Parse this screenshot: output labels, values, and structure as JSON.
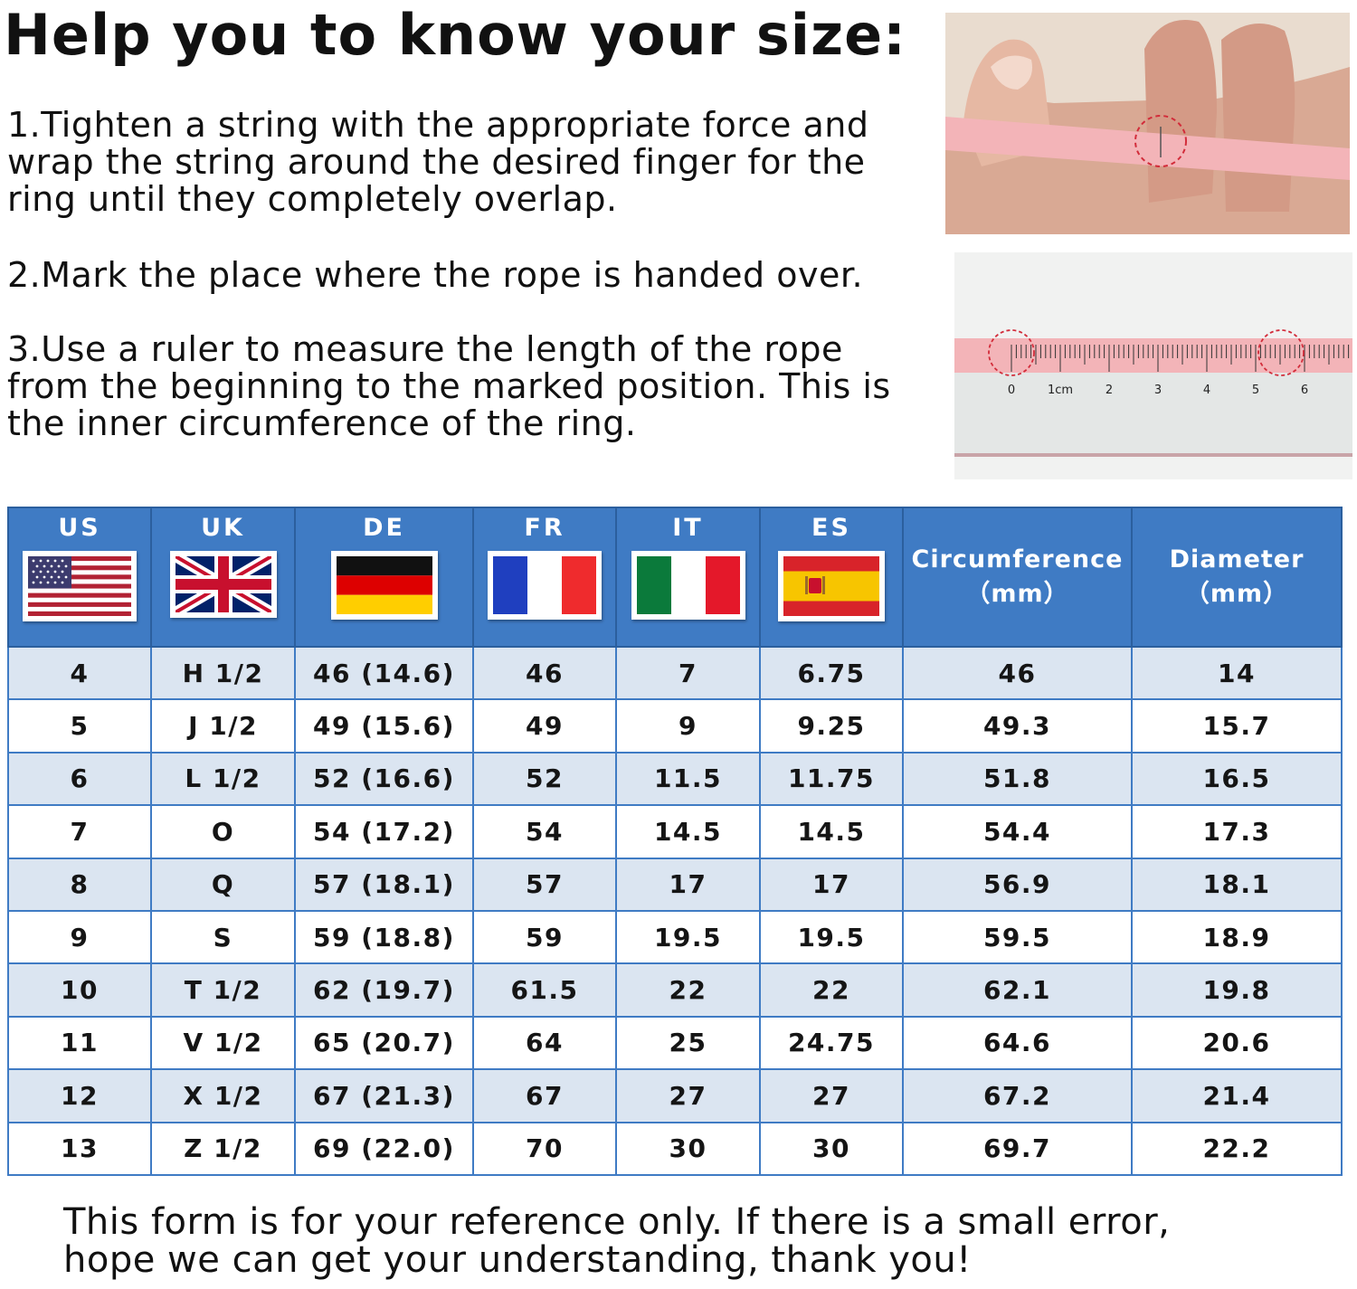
{
  "title": "Help you to know your size:",
  "steps": [
    "1.Tighten a string with the appropriate force and wrap the string around the desired finger for the ring until they completely overlap.",
    "2.Mark the place where the rope is handed over.",
    "3.Use a ruler to measure the length of the rope from the beginning to the marked position. This is the inner circumference of the ring."
  ],
  "ruler": {
    "labels": [
      "0",
      "1cm",
      "2",
      "3",
      "4",
      "5",
      "6"
    ]
  },
  "table": {
    "headers": {
      "us": "US",
      "uk": "UK",
      "de": "DE",
      "fr": "FR",
      "it": "IT",
      "es": "ES",
      "circ_line1": "Circumference",
      "circ_line2": "（mm）",
      "diam_line1": "Diameter",
      "diam_line2": "（mm）"
    },
    "rows": [
      [
        "4",
        "H 1/2",
        "46 (14.6)",
        "46",
        "7",
        "6.75",
        "46",
        "14"
      ],
      [
        "5",
        "J 1/2",
        "49 (15.6)",
        "49",
        "9",
        "9.25",
        "49.3",
        "15.7"
      ],
      [
        "6",
        "L 1/2",
        "52 (16.6)",
        "52",
        "11.5",
        "11.75",
        "51.8",
        "16.5"
      ],
      [
        "7",
        "O",
        "54 (17.2)",
        "54",
        "14.5",
        "14.5",
        "54.4",
        "17.3"
      ],
      [
        "8",
        "Q",
        "57 (18.1)",
        "57",
        "17",
        "17",
        "56.9",
        "18.1"
      ],
      [
        "9",
        "S",
        "59 (18.8)",
        "59",
        "19.5",
        "19.5",
        "59.5",
        "18.9"
      ],
      [
        "10",
        "T 1/2",
        "62 (19.7)",
        "61.5",
        "22",
        "22",
        "62.1",
        "19.8"
      ],
      [
        "11",
        "V 1/2",
        "65 (20.7)",
        "64",
        "25",
        "24.75",
        "64.6",
        "20.6"
      ],
      [
        "12",
        "X 1/2",
        "67 (21.3)",
        "67",
        "27",
        "27",
        "67.2",
        "21.4"
      ],
      [
        "13",
        "Z 1/2",
        "69 (22.0)",
        "70",
        "30",
        "30",
        "69.7",
        "22.2"
      ]
    ]
  },
  "footer": {
    "line1": "This form is for your reference only. If there is a small error,",
    "line2": "hope we can get your understanding, thank you!"
  },
  "colors": {
    "header_blue": "#3f7bc4",
    "row_alt": "#dbe5f1",
    "tape_pink": "#f3b4b8"
  }
}
